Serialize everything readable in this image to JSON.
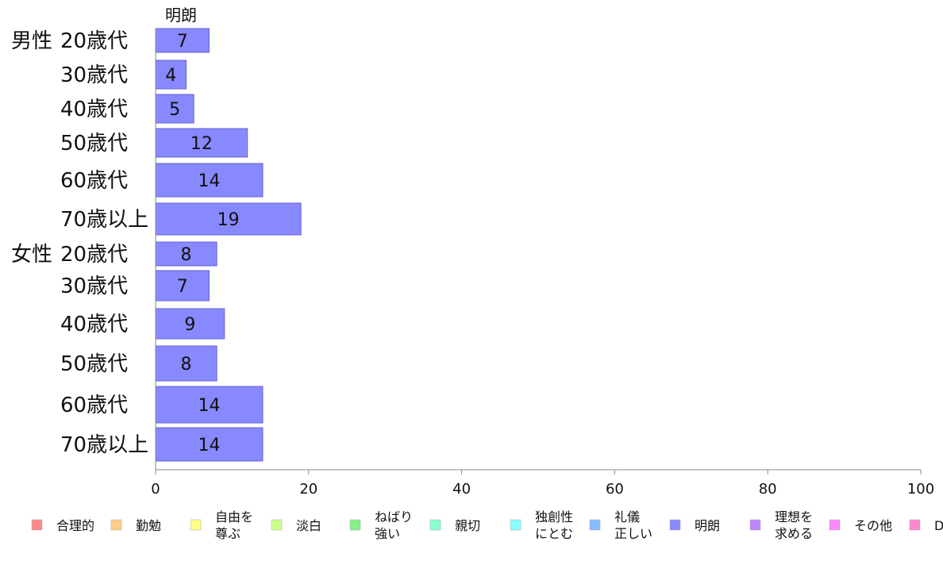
{
  "chart_data": {
    "type": "bar",
    "orientation": "horizontal",
    "series_header": "明朗",
    "group_labels": [
      "男性",
      "女性"
    ],
    "categories": [
      "20歳代",
      "30歳代",
      "40歳代",
      "50歳代",
      "60歳代",
      "70歳以上",
      "20歳代",
      "30歳代",
      "40歳代",
      "50歳代",
      "60歳代",
      "70歳以上"
    ],
    "category_groups": [
      0,
      0,
      0,
      0,
      0,
      0,
      1,
      1,
      1,
      1,
      1,
      1
    ],
    "series": [
      {
        "name": "明朗",
        "color": "#8888ff",
        "values": [
          7,
          4,
          5,
          12,
          14,
          19,
          8,
          7,
          9,
          8,
          14,
          14
        ],
        "value_labels": [
          "7",
          "4",
          "5",
          "12",
          "14",
          "19",
          "8",
          "7",
          "9",
          "8",
          "14",
          "14"
        ]
      }
    ],
    "xlim": [
      0,
      100
    ],
    "xticks": [
      0,
      20,
      40,
      60,
      80,
      100
    ],
    "xtick_labels": [
      "0",
      "20",
      "40",
      "60",
      "80",
      "100"
    ],
    "grid": false,
    "legend_position": "bottom",
    "legend": [
      {
        "lines": [
          "合理的"
        ],
        "color": "#ff8888"
      },
      {
        "lines": [
          "勤勉"
        ],
        "color": "#ffcc88"
      },
      {
        "lines": [
          "自由を",
          "尊ぶ"
        ],
        "color": "#ffff88"
      },
      {
        "lines": [
          "淡白"
        ],
        "color": "#ccff88"
      },
      {
        "lines": [
          "ねばり",
          "強い"
        ],
        "color": "#88ee88"
      },
      {
        "lines": [
          "親切"
        ],
        "color": "#88ffcc"
      },
      {
        "lines": [
          "独創性",
          "にとむ"
        ],
        "color": "#88ffff"
      },
      {
        "lines": [
          "礼儀",
          "正しい"
        ],
        "color": "#88bbff"
      },
      {
        "lines": [
          "明朗"
        ],
        "color": "#8888ff"
      },
      {
        "lines": [
          "理想を",
          "求める"
        ],
        "color": "#bb88ff"
      },
      {
        "lines": [
          "その他"
        ],
        "color": "#ff88ff"
      },
      {
        "lines": [
          "D"
        ],
        "color": "#ff88cc"
      }
    ]
  }
}
